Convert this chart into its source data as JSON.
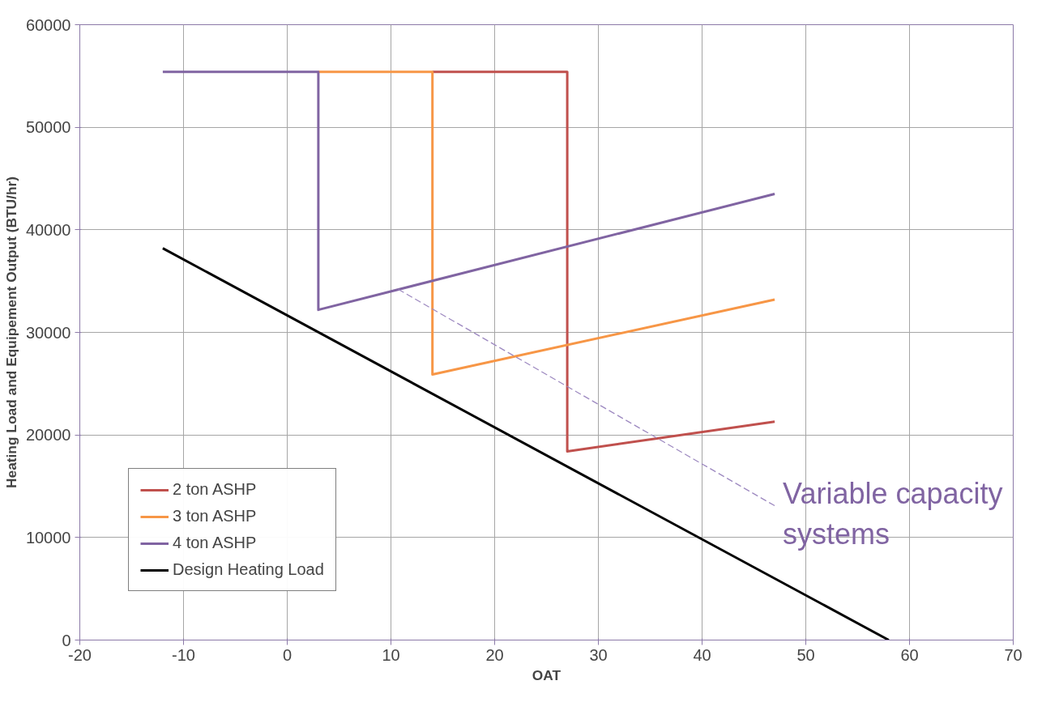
{
  "chart_data": {
    "type": "line",
    "xlabel": "OAT",
    "ylabel": "Heating Load and Equipement Output (BTU/hr)",
    "xlim": [
      -20,
      70
    ],
    "xticks": [
      -20,
      -10,
      0,
      10,
      20,
      30,
      40,
      50,
      60,
      70
    ],
    "ylim": [
      0,
      60000
    ],
    "yticks": [
      0,
      10000,
      20000,
      30000,
      40000,
      50000,
      60000
    ],
    "grid": true,
    "legend": "bottom left",
    "line_style": "solid",
    "series": [
      {
        "name": "2 ton ASHP",
        "color": "#c0504d",
        "x": [
          14,
          27,
          27,
          47
        ],
        "values": [
          55400,
          55400,
          18400,
          21300
        ]
      },
      {
        "name": "3 ton ASHP",
        "color": "#f79646",
        "x": [
          3,
          14,
          14,
          47
        ],
        "values": [
          55400,
          55400,
          25900,
          33200
        ]
      },
      {
        "name": "4 ton ASHP",
        "color": "#8064a2",
        "x": [
          -12,
          3,
          3,
          47
        ],
        "values": [
          55400,
          55400,
          32200,
          43500
        ]
      },
      {
        "name": "Design Heating Load",
        "color": "#000000",
        "x": [
          -12,
          58
        ],
        "values": [
          38200,
          0
        ]
      },
      {
        "color": "#9d89c0",
        "line_style": "dashed",
        "x": [
          10.7,
          47
        ],
        "values": [
          34200,
          13100
        ]
      }
    ],
    "annotations": [
      {
        "text": "Variable capacity systems",
        "x": 47,
        "y": 13100
      }
    ]
  }
}
